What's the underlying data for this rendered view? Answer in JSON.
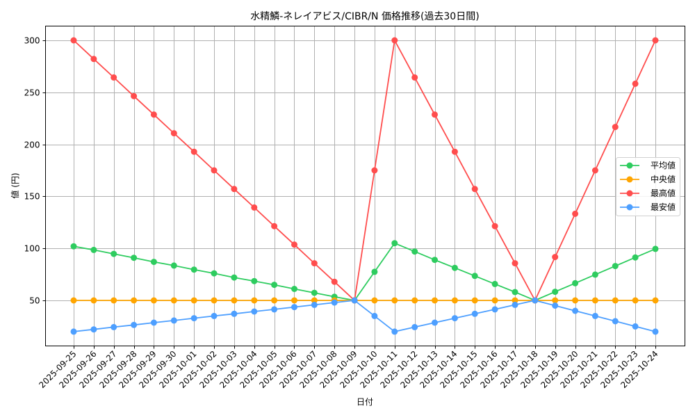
{
  "chart_data": {
    "type": "line",
    "title": "水精鱗-ネレイアビス/CIBR/N 価格推移(過去30日間)",
    "xlabel": "日付",
    "ylabel": "値 (円)",
    "ylim": [
      10,
      315
    ],
    "yticks": [
      50,
      100,
      150,
      200,
      250,
      300
    ],
    "grid": true,
    "legend_position": "center right",
    "x": [
      "2025-09-25",
      "2025-09-26",
      "2025-09-27",
      "2025-09-28",
      "2025-09-29",
      "2025-09-30",
      "2025-10-01",
      "2025-10-02",
      "2025-10-03",
      "2025-10-04",
      "2025-10-05",
      "2025-10-06",
      "2025-10-07",
      "2025-10-08",
      "2025-10-09",
      "2025-10-10",
      "2025-10-11",
      "2025-10-12",
      "2025-10-13",
      "2025-10-14",
      "2025-10-15",
      "2025-10-16",
      "2025-10-17",
      "2025-10-18",
      "2025-10-19",
      "2025-10-20",
      "2025-10-21",
      "2025-10-22",
      "2025-10-23",
      "2025-10-24"
    ],
    "series": [
      {
        "name": "平均値",
        "color": "#2ecc5f",
        "values": [
          102,
          98.5,
          94.7,
          91,
          87,
          83.5,
          79.6,
          76,
          72,
          68.6,
          65,
          61,
          57.3,
          53.5,
          50,
          77.5,
          105,
          97,
          89,
          81.3,
          73.5,
          65.8,
          58,
          50,
          58.3,
          66.5,
          74.8,
          83,
          91.3,
          99.5
        ]
      },
      {
        "name": "中央値",
        "color": "#ffa500",
        "values": [
          50,
          50,
          50,
          50,
          50,
          50,
          50,
          50,
          50,
          50,
          50,
          50,
          50,
          50,
          50,
          50,
          50,
          50,
          50,
          50,
          50,
          50,
          50,
          50,
          50,
          50,
          50,
          50,
          50,
          50
        ]
      },
      {
        "name": "最高値",
        "color": "#ff4d4d",
        "values": [
          300,
          282.1,
          264.3,
          246.4,
          228.6,
          210.7,
          192.9,
          175,
          157.1,
          139.3,
          121.4,
          103.6,
          85.7,
          67.9,
          50,
          175,
          300,
          264.3,
          228.6,
          192.9,
          157.1,
          121.4,
          85.7,
          50,
          91.7,
          133.3,
          175,
          216.7,
          258.3,
          300
        ]
      },
      {
        "name": "最安値",
        "color": "#4d9fff",
        "values": [
          20,
          22.1,
          24.3,
          26.4,
          28.6,
          30.7,
          32.9,
          35,
          37.1,
          39.3,
          41.4,
          43.6,
          45.7,
          47.9,
          50,
          35,
          20,
          24.3,
          28.6,
          32.9,
          37.1,
          41.4,
          45.7,
          50,
          45,
          40,
          35,
          30,
          25,
          20
        ]
      }
    ]
  }
}
